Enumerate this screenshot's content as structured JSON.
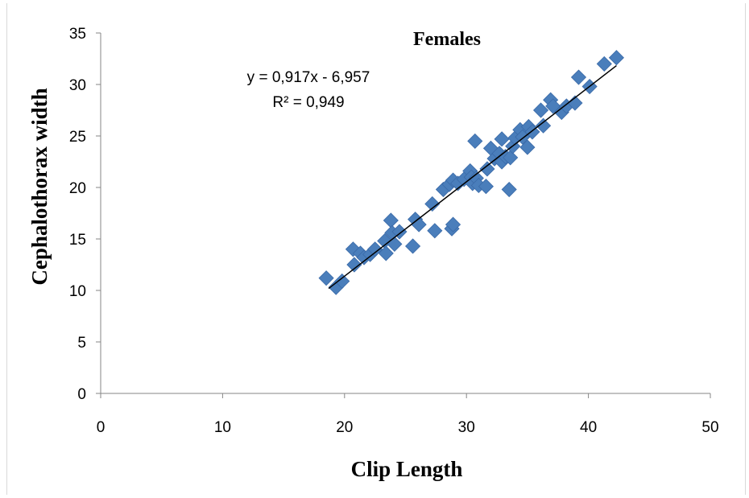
{
  "chart_data": {
    "type": "scatter",
    "title": "Females",
    "xlabel": "Clip Length",
    "ylabel": "Cephalothorax  width",
    "xlim": [
      0,
      50
    ],
    "ylim": [
      0,
      35
    ],
    "xticks": [
      0,
      10,
      20,
      30,
      40,
      50
    ],
    "yticks": [
      0,
      5,
      10,
      15,
      20,
      25,
      30,
      35
    ],
    "grid": false,
    "marker": "diamond",
    "marker_color": "#4a7ebb",
    "trendline": {
      "slope": 0.917,
      "intercept": -6.957,
      "x_range": [
        18.7,
        42.3
      ],
      "color": "#000000",
      "equation_label": "y = 0,917x - 6,957",
      "r2_label": "R² = 0,949"
    },
    "points": [
      [
        18.5,
        11.2
      ],
      [
        19.3,
        10.3
      ],
      [
        19.8,
        10.9
      ],
      [
        20.7,
        14.0
      ],
      [
        20.8,
        12.5
      ],
      [
        21.3,
        13.6
      ],
      [
        21.6,
        13.2
      ],
      [
        22.1,
        13.5
      ],
      [
        22.5,
        14.0
      ],
      [
        23.3,
        14.8
      ],
      [
        23.4,
        13.6
      ],
      [
        23.8,
        16.8
      ],
      [
        23.9,
        15.6
      ],
      [
        24.1,
        14.5
      ],
      [
        24.5,
        15.7
      ],
      [
        25.6,
        14.3
      ],
      [
        25.8,
        16.9
      ],
      [
        26.1,
        16.4
      ],
      [
        27.2,
        18.4
      ],
      [
        27.4,
        15.8
      ],
      [
        28.1,
        19.8
      ],
      [
        28.6,
        20.3
      ],
      [
        28.8,
        16.0
      ],
      [
        28.9,
        16.4
      ],
      [
        28.9,
        20.7
      ],
      [
        29.3,
        20.4
      ],
      [
        29.8,
        20.8
      ],
      [
        30.3,
        21.6
      ],
      [
        30.4,
        21.0
      ],
      [
        30.5,
        20.4
      ],
      [
        30.7,
        24.5
      ],
      [
        30.8,
        20.9
      ],
      [
        31.0,
        20.2
      ],
      [
        31.6,
        20.1
      ],
      [
        31.7,
        21.8
      ],
      [
        32.0,
        23.8
      ],
      [
        32.3,
        22.8
      ],
      [
        32.7,
        23.3
      ],
      [
        32.9,
        22.5
      ],
      [
        32.9,
        24.7
      ],
      [
        33.2,
        23.0
      ],
      [
        33.5,
        19.8
      ],
      [
        33.6,
        22.9
      ],
      [
        33.8,
        24.0
      ],
      [
        34.0,
        24.8
      ],
      [
        34.4,
        25.6
      ],
      [
        34.6,
        24.9
      ],
      [
        35.0,
        23.9
      ],
      [
        35.1,
        25.9
      ],
      [
        35.4,
        25.4
      ],
      [
        36.1,
        27.5
      ],
      [
        36.3,
        26.0
      ],
      [
        36.9,
        28.5
      ],
      [
        37.1,
        27.9
      ],
      [
        37.8,
        27.3
      ],
      [
        38.2,
        27.9
      ],
      [
        38.9,
        28.2
      ],
      [
        39.2,
        30.7
      ],
      [
        40.1,
        29.8
      ],
      [
        41.3,
        32.0
      ],
      [
        42.3,
        32.6
      ]
    ]
  }
}
